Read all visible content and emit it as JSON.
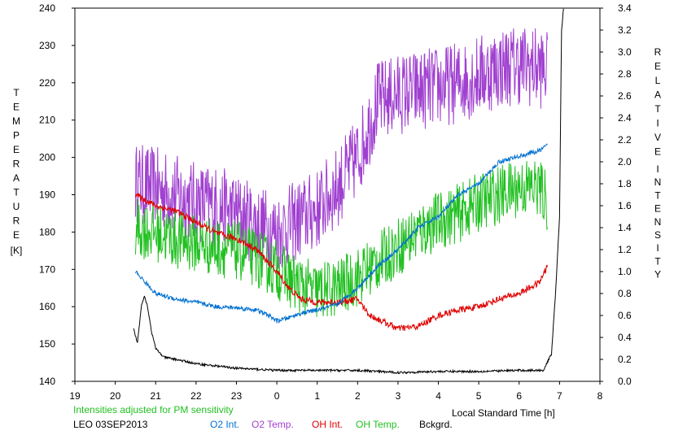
{
  "chart_data": {
    "type": "line",
    "note": "Intensities adjusted for PM sensitivity",
    "station_label": "LEO 03SEP2013",
    "xlabel": "Local Standard Time [h]",
    "ylabel_left": [
      "T",
      "E",
      "M",
      "P",
      "E",
      "R",
      "A",
      "T",
      "U",
      "R",
      "E"
    ],
    "ylabel_left_unit": "[K]",
    "ylabel_right_1": [
      "R",
      "E",
      "L",
      "A",
      "T",
      "I",
      "V",
      "E"
    ],
    "ylabel_right_2": [
      "I",
      "N",
      "T",
      "E",
      "N",
      "S",
      "I",
      "T",
      "Y"
    ],
    "x_ticks": [
      "19",
      "20",
      "21",
      "22",
      "23",
      "0",
      "1",
      "2",
      "3",
      "4",
      "5",
      "6",
      "7",
      "8"
    ],
    "y_left_ticks": [
      "140",
      "150",
      "160",
      "170",
      "180",
      "190",
      "200",
      "210",
      "220",
      "230",
      "240"
    ],
    "y_right_ticks": [
      "0.0",
      "0.2",
      "0.4",
      "0.6",
      "0.8",
      "1.0",
      "1.2",
      "1.4",
      "1.6",
      "1.8",
      "2.0",
      "2.2",
      "2.4",
      "2.6",
      "2.8",
      "3.0",
      "3.2",
      "3.4"
    ],
    "xlim": [
      19,
      32
    ],
    "ylim_left": [
      140,
      240
    ],
    "ylim_right": [
      0,
      3.4
    ],
    "legend": [
      {
        "label": "O2 Int.",
        "color": "#0070d0"
      },
      {
        "label": "O2 Temp.",
        "color": "#a040d0"
      },
      {
        "label": "OH Int.",
        "color": "#e00000"
      },
      {
        "label": "OH Temp.",
        "color": "#20c020"
      },
      {
        "label": "Bckgrd.",
        "color": "#000000"
      }
    ],
    "series": [
      {
        "key": "o2_temp",
        "axis": "left",
        "color": "#a040d0",
        "noise": 11,
        "x": [
          20.5,
          21.0,
          21.5,
          22.0,
          22.5,
          23.0,
          23.5,
          24.0,
          24.5,
          25.0,
          25.5,
          26.0,
          26.5,
          27.0,
          27.5,
          28.0,
          28.5,
          29.0,
          29.5,
          30.0,
          30.5,
          30.7
        ],
        "y": [
          193,
          192,
          190,
          188,
          187,
          185,
          182,
          180,
          183,
          186,
          192,
          200,
          215,
          217,
          218,
          219,
          220,
          222,
          224,
          225,
          224,
          223
        ]
      },
      {
        "key": "oh_temp",
        "axis": "left",
        "color": "#20c020",
        "noise": 8,
        "x": [
          20.5,
          21.0,
          21.5,
          22.0,
          22.5,
          23.0,
          23.5,
          24.0,
          24.5,
          25.0,
          25.5,
          26.0,
          26.5,
          27.0,
          27.5,
          28.0,
          28.5,
          29.0,
          29.5,
          30.0,
          30.5,
          30.7
        ],
        "y": [
          181,
          180,
          178,
          177,
          176,
          175,
          173,
          170,
          166,
          164,
          165,
          168,
          172,
          176,
          180,
          183,
          185,
          188,
          190,
          192,
          192,
          188
        ]
      },
      {
        "key": "oh_int",
        "axis": "right",
        "color": "#e00000",
        "noise": 0.03,
        "x": [
          20.5,
          21.0,
          21.5,
          22.0,
          22.5,
          23.0,
          23.5,
          24.0,
          24.3,
          24.6,
          25.0,
          25.5,
          26.0,
          26.3,
          26.6,
          27.0,
          27.5,
          28.0,
          28.5,
          29.0,
          29.5,
          30.0,
          30.5,
          30.7
        ],
        "y": [
          1.7,
          1.6,
          1.55,
          1.45,
          1.35,
          1.3,
          1.2,
          1.0,
          0.85,
          0.75,
          0.72,
          0.72,
          0.75,
          0.6,
          0.55,
          0.48,
          0.5,
          0.6,
          0.65,
          0.68,
          0.75,
          0.8,
          0.9,
          1.05
        ]
      },
      {
        "key": "o2_int",
        "axis": "right",
        "color": "#0070d0",
        "noise": 0.02,
        "x": [
          20.5,
          20.8,
          21.0,
          21.5,
          22.0,
          22.5,
          23.0,
          23.5,
          23.8,
          24.0,
          24.3,
          24.6,
          25.0,
          25.5,
          26.0,
          26.5,
          27.0,
          27.5,
          28.0,
          28.5,
          29.0,
          29.5,
          30.0,
          30.5,
          30.7
        ],
        "y": [
          1.0,
          0.88,
          0.8,
          0.75,
          0.72,
          0.68,
          0.67,
          0.65,
          0.6,
          0.55,
          0.58,
          0.62,
          0.65,
          0.7,
          0.85,
          1.05,
          1.2,
          1.4,
          1.5,
          1.7,
          1.8,
          2.0,
          2.05,
          2.1,
          2.15
        ]
      },
      {
        "key": "bckgrd",
        "axis": "right",
        "color": "#000000",
        "noise": 0.01,
        "x": [
          20.45,
          20.55,
          20.65,
          20.72,
          20.8,
          20.9,
          21.0,
          21.2,
          21.5,
          22.0,
          22.5,
          23.0,
          24.0,
          25.0,
          26.0,
          27.0,
          28.0,
          29.0,
          30.0,
          30.6,
          30.8,
          30.9,
          31.0,
          31.05,
          31.1
        ],
        "y": [
          0.48,
          0.35,
          0.7,
          0.78,
          0.68,
          0.45,
          0.3,
          0.22,
          0.2,
          0.16,
          0.14,
          0.12,
          0.1,
          0.1,
          0.1,
          0.08,
          0.09,
          0.09,
          0.1,
          0.1,
          0.25,
          0.8,
          1.5,
          3.2,
          3.4
        ]
      }
    ]
  }
}
